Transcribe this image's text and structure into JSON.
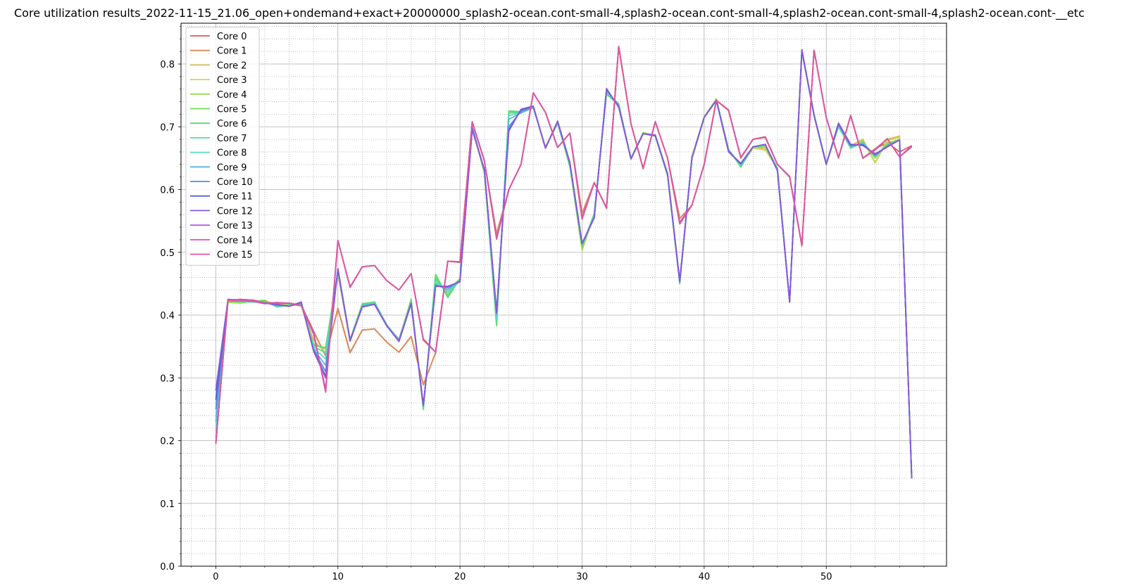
{
  "chart_data": {
    "type": "line",
    "title": "Core utilization results_2022-11-15_21.06_open+ondemand+exact+20000000_splash2-ocean.cont-small-4,splash2-ocean.cont-small-4,splash2-ocean.cont-small-4,splash2-ocean.cont-__etc",
    "xlabel": "",
    "ylabel": "",
    "xlim": [
      -2.85,
      59.85
    ],
    "ylim": [
      0.0,
      0.865
    ],
    "x_ticks": [
      0,
      10,
      20,
      30,
      40,
      50
    ],
    "y_ticks": [
      0.0,
      0.1,
      0.2,
      0.3,
      0.4,
      0.5,
      0.6,
      0.7,
      0.8
    ],
    "x_tick_labels": [
      "0",
      "10",
      "20",
      "30",
      "40",
      "50"
    ],
    "y_tick_labels": [
      "0.0",
      "0.1",
      "0.2",
      "0.3",
      "0.4",
      "0.5",
      "0.6",
      "0.7",
      "0.8"
    ],
    "grid": "major and minor",
    "legend_position": "top-left",
    "x": [
      0,
      1,
      2,
      3,
      4,
      5,
      6,
      7,
      8,
      9,
      10,
      11,
      12,
      13,
      14,
      15,
      16,
      17,
      18,
      19,
      20,
      21,
      22,
      23,
      24,
      25,
      26,
      27,
      28,
      29,
      30,
      31,
      32,
      33,
      34,
      35,
      36,
      37,
      38,
      39,
      40,
      41,
      42,
      43,
      44,
      45,
      46,
      47,
      48,
      49,
      50,
      51,
      52,
      53,
      54,
      55,
      56,
      57
    ],
    "series": [
      {
        "name": "Core 0",
        "color": "#db5f57",
        "values": [
          0.195,
          0.424,
          0.425,
          0.424,
          0.42,
          0.419,
          0.419,
          0.416,
          0.375,
          0.335,
          0.41,
          0.34,
          0.376,
          0.378,
          0.357,
          0.341,
          0.366,
          0.289,
          0.34,
          0.486,
          0.485,
          0.707,
          0.645,
          0.53,
          0.6,
          0.64,
          0.754,
          0.723,
          0.667,
          0.69,
          0.562,
          0.611,
          0.57,
          0.828,
          0.705,
          0.633,
          0.708,
          0.65,
          0.554,
          0.575,
          0.64,
          0.742,
          0.727,
          0.65,
          0.68,
          0.683,
          0.64,
          0.62,
          0.51,
          0.822,
          0.715,
          0.65,
          0.718,
          0.65,
          0.665,
          0.675,
          0.66,
          0.67
        ]
      },
      {
        "name": "Core 1",
        "color": "#db8b57",
        "values": [
          0.195,
          0.423,
          0.424,
          0.424,
          0.421,
          0.418,
          0.418,
          0.416,
          0.374,
          0.335,
          0.411,
          0.341,
          0.376,
          0.378,
          0.357,
          0.341,
          0.366,
          0.289,
          0.34,
          0.486,
          0.485,
          0.707,
          0.645,
          0.53,
          0.6,
          0.64,
          0.754,
          0.723,
          0.667,
          0.69,
          0.562,
          0.611,
          0.57,
          0.828,
          0.705,
          0.633,
          0.708,
          0.65,
          0.554,
          0.575,
          0.64,
          0.742,
          0.727,
          0.65,
          0.68,
          0.683,
          0.64,
          0.62,
          0.51,
          0.822,
          0.715,
          0.65,
          0.718,
          0.65,
          0.665,
          0.68,
          0.685,
          0.14
        ]
      },
      {
        "name": "Core 2",
        "color": "#dbb757",
        "values": [
          0.195,
          0.422,
          0.423,
          0.423,
          0.422,
          0.418,
          0.417,
          0.416,
          0.36,
          0.34,
          0.465,
          0.358,
          0.415,
          0.418,
          0.383,
          0.362,
          0.424,
          0.255,
          0.45,
          0.44,
          0.458,
          0.7,
          0.628,
          0.39,
          0.722,
          0.722,
          0.73,
          0.668,
          0.705,
          0.638,
          0.508,
          0.562,
          0.752,
          0.735,
          0.65,
          0.69,
          0.685,
          0.625,
          0.455,
          0.65,
          0.715,
          0.744,
          0.66,
          0.64,
          0.668,
          0.665,
          0.635,
          0.42,
          0.818,
          0.718,
          0.642,
          0.7,
          0.67,
          0.68,
          0.643,
          0.68,
          0.685,
          0.14
        ]
      },
      {
        "name": "Core 3",
        "color": "#c7db57",
        "values": [
          0.195,
          0.42,
          0.419,
          0.422,
          0.423,
          0.415,
          0.416,
          0.415,
          0.355,
          0.345,
          0.468,
          0.36,
          0.416,
          0.419,
          0.384,
          0.36,
          0.426,
          0.252,
          0.455,
          0.436,
          0.455,
          0.698,
          0.626,
          0.385,
          0.724,
          0.723,
          0.731,
          0.667,
          0.706,
          0.637,
          0.503,
          0.561,
          0.753,
          0.736,
          0.648,
          0.691,
          0.686,
          0.624,
          0.452,
          0.652,
          0.716,
          0.745,
          0.662,
          0.638,
          0.666,
          0.663,
          0.634,
          0.42,
          0.82,
          0.719,
          0.64,
          0.702,
          0.668,
          0.678,
          0.642,
          0.678,
          0.683,
          0.14
        ]
      },
      {
        "name": "Core 4",
        "color": "#9bdb57",
        "values": [
          0.195,
          0.421,
          0.42,
          0.422,
          0.424,
          0.414,
          0.417,
          0.415,
          0.353,
          0.347,
          0.469,
          0.361,
          0.417,
          0.42,
          0.385,
          0.359,
          0.425,
          0.251,
          0.46,
          0.432,
          0.456,
          0.699,
          0.627,
          0.383,
          0.725,
          0.724,
          0.732,
          0.667,
          0.706,
          0.636,
          0.505,
          0.56,
          0.754,
          0.737,
          0.649,
          0.69,
          0.685,
          0.623,
          0.451,
          0.653,
          0.716,
          0.744,
          0.663,
          0.637,
          0.667,
          0.668,
          0.633,
          0.421,
          0.821,
          0.72,
          0.641,
          0.701,
          0.667,
          0.677,
          0.65,
          0.674,
          0.68,
          0.14
        ]
      },
      {
        "name": "Core 5",
        "color": "#6fdb57",
        "values": [
          0.195,
          0.422,
          0.421,
          0.421,
          0.423,
          0.413,
          0.416,
          0.416,
          0.352,
          0.348,
          0.47,
          0.361,
          0.418,
          0.421,
          0.385,
          0.36,
          0.424,
          0.25,
          0.462,
          0.43,
          0.457,
          0.699,
          0.628,
          0.384,
          0.725,
          0.724,
          0.732,
          0.666,
          0.707,
          0.637,
          0.509,
          0.561,
          0.753,
          0.736,
          0.649,
          0.69,
          0.685,
          0.622,
          0.45,
          0.652,
          0.715,
          0.743,
          0.664,
          0.636,
          0.668,
          0.67,
          0.634,
          0.422,
          0.822,
          0.72,
          0.641,
          0.701,
          0.666,
          0.676,
          0.652,
          0.672,
          0.679,
          0.14
        ]
      },
      {
        "name": "Core 6",
        "color": "#57db6f",
        "values": [
          0.195,
          0.423,
          0.422,
          0.421,
          0.422,
          0.413,
          0.416,
          0.417,
          0.352,
          0.348,
          0.47,
          0.361,
          0.417,
          0.421,
          0.384,
          0.36,
          0.423,
          0.25,
          0.465,
          0.428,
          0.458,
          0.7,
          0.629,
          0.385,
          0.725,
          0.724,
          0.732,
          0.666,
          0.707,
          0.638,
          0.51,
          0.562,
          0.752,
          0.735,
          0.65,
          0.69,
          0.685,
          0.622,
          0.45,
          0.651,
          0.715,
          0.743,
          0.664,
          0.636,
          0.668,
          0.671,
          0.634,
          0.422,
          0.822,
          0.72,
          0.641,
          0.7,
          0.666,
          0.675,
          0.653,
          0.671,
          0.679,
          0.14
        ]
      },
      {
        "name": "Core 7",
        "color": "#57db9b",
        "values": [
          0.205,
          0.423,
          0.422,
          0.421,
          0.421,
          0.414,
          0.416,
          0.418,
          0.35,
          0.34,
          0.47,
          0.36,
          0.416,
          0.42,
          0.384,
          0.36,
          0.422,
          0.252,
          0.458,
          0.432,
          0.457,
          0.7,
          0.629,
          0.39,
          0.722,
          0.723,
          0.731,
          0.667,
          0.706,
          0.639,
          0.511,
          0.56,
          0.754,
          0.735,
          0.649,
          0.69,
          0.685,
          0.623,
          0.451,
          0.651,
          0.715,
          0.743,
          0.664,
          0.638,
          0.668,
          0.671,
          0.633,
          0.422,
          0.822,
          0.719,
          0.641,
          0.701,
          0.667,
          0.675,
          0.653,
          0.67,
          0.679,
          0.14
        ]
      },
      {
        "name": "Core 8",
        "color": "#57dbc7",
        "values": [
          0.215,
          0.424,
          0.423,
          0.421,
          0.421,
          0.414,
          0.415,
          0.418,
          0.348,
          0.33,
          0.471,
          0.36,
          0.415,
          0.419,
          0.384,
          0.36,
          0.421,
          0.254,
          0.452,
          0.437,
          0.456,
          0.7,
          0.63,
          0.395,
          0.718,
          0.722,
          0.731,
          0.667,
          0.706,
          0.64,
          0.512,
          0.558,
          0.756,
          0.735,
          0.649,
          0.689,
          0.685,
          0.624,
          0.452,
          0.651,
          0.715,
          0.743,
          0.663,
          0.639,
          0.668,
          0.671,
          0.632,
          0.421,
          0.822,
          0.718,
          0.641,
          0.702,
          0.668,
          0.674,
          0.653,
          0.67,
          0.679,
          0.14
        ]
      },
      {
        "name": "Core 9",
        "color": "#57b7db",
        "values": [
          0.23,
          0.424,
          0.423,
          0.422,
          0.42,
          0.415,
          0.415,
          0.419,
          0.346,
          0.32,
          0.472,
          0.36,
          0.414,
          0.418,
          0.383,
          0.36,
          0.42,
          0.255,
          0.449,
          0.441,
          0.455,
          0.699,
          0.63,
          0.4,
          0.712,
          0.722,
          0.731,
          0.667,
          0.707,
          0.641,
          0.513,
          0.557,
          0.758,
          0.734,
          0.649,
          0.689,
          0.686,
          0.624,
          0.452,
          0.65,
          0.715,
          0.743,
          0.662,
          0.64,
          0.668,
          0.672,
          0.631,
          0.421,
          0.822,
          0.718,
          0.64,
          0.703,
          0.669,
          0.673,
          0.654,
          0.669,
          0.679,
          0.14
        ]
      },
      {
        "name": "Core 10",
        "color": "#578bdb",
        "values": [
          0.25,
          0.425,
          0.424,
          0.423,
          0.42,
          0.416,
          0.414,
          0.42,
          0.345,
          0.31,
          0.473,
          0.359,
          0.414,
          0.417,
          0.383,
          0.359,
          0.419,
          0.256,
          0.447,
          0.444,
          0.454,
          0.697,
          0.631,
          0.403,
          0.7,
          0.725,
          0.732,
          0.666,
          0.708,
          0.642,
          0.514,
          0.556,
          0.759,
          0.733,
          0.649,
          0.689,
          0.686,
          0.625,
          0.453,
          0.65,
          0.715,
          0.742,
          0.661,
          0.641,
          0.668,
          0.672,
          0.63,
          0.421,
          0.822,
          0.718,
          0.64,
          0.704,
          0.67,
          0.672,
          0.655,
          0.669,
          0.679,
          0.14
        ]
      },
      {
        "name": "Core 11",
        "color": "#575fdb",
        "values": [
          0.265,
          0.425,
          0.424,
          0.423,
          0.419,
          0.417,
          0.414,
          0.42,
          0.344,
          0.303,
          0.474,
          0.359,
          0.413,
          0.417,
          0.383,
          0.358,
          0.418,
          0.256,
          0.446,
          0.445,
          0.453,
          0.696,
          0.631,
          0.405,
          0.695,
          0.727,
          0.733,
          0.666,
          0.709,
          0.643,
          0.514,
          0.555,
          0.76,
          0.732,
          0.649,
          0.689,
          0.686,
          0.625,
          0.454,
          0.65,
          0.715,
          0.742,
          0.661,
          0.641,
          0.668,
          0.672,
          0.63,
          0.421,
          0.822,
          0.718,
          0.64,
          0.705,
          0.671,
          0.671,
          0.656,
          0.668,
          0.679,
          0.14
        ]
      },
      {
        "name": "Core 12",
        "color": "#8b57db",
        "values": [
          0.28,
          0.425,
          0.424,
          0.424,
          0.419,
          0.417,
          0.414,
          0.421,
          0.343,
          0.3,
          0.474,
          0.359,
          0.413,
          0.417,
          0.383,
          0.358,
          0.418,
          0.256,
          0.446,
          0.446,
          0.453,
          0.695,
          0.632,
          0.406,
          0.693,
          0.728,
          0.733,
          0.666,
          0.709,
          0.643,
          0.514,
          0.555,
          0.761,
          0.731,
          0.649,
          0.689,
          0.687,
          0.625,
          0.454,
          0.65,
          0.715,
          0.742,
          0.66,
          0.642,
          0.668,
          0.672,
          0.63,
          0.421,
          0.823,
          0.718,
          0.64,
          0.706,
          0.672,
          0.67,
          0.657,
          0.668,
          0.679,
          0.14
        ]
      },
      {
        "name": "Core 13",
        "color": "#b757db",
        "values": [
          0.195,
          0.423,
          0.423,
          0.422,
          0.418,
          0.419,
          0.419,
          0.415,
          0.37,
          0.282,
          0.519,
          0.444,
          0.477,
          0.479,
          0.455,
          0.44,
          0.466,
          0.36,
          0.341,
          0.486,
          0.484,
          0.708,
          0.646,
          0.523,
          0.6,
          0.64,
          0.754,
          0.723,
          0.667,
          0.69,
          0.555,
          0.611,
          0.571,
          0.828,
          0.705,
          0.634,
          0.708,
          0.65,
          0.548,
          0.575,
          0.64,
          0.742,
          0.726,
          0.651,
          0.68,
          0.684,
          0.64,
          0.621,
          0.511,
          0.822,
          0.715,
          0.651,
          0.718,
          0.65,
          0.664,
          0.681,
          0.652,
          0.668
        ]
      },
      {
        "name": "Core 14",
        "color": "#db57c7",
        "values": [
          0.195,
          0.423,
          0.424,
          0.423,
          0.419,
          0.42,
          0.419,
          0.415,
          0.372,
          0.279,
          0.519,
          0.444,
          0.477,
          0.479,
          0.455,
          0.44,
          0.466,
          0.361,
          0.341,
          0.486,
          0.484,
          0.708,
          0.646,
          0.522,
          0.6,
          0.64,
          0.754,
          0.723,
          0.667,
          0.69,
          0.554,
          0.611,
          0.571,
          0.828,
          0.705,
          0.634,
          0.708,
          0.65,
          0.546,
          0.575,
          0.64,
          0.742,
          0.726,
          0.651,
          0.68,
          0.684,
          0.64,
          0.621,
          0.511,
          0.822,
          0.715,
          0.651,
          0.718,
          0.65,
          0.663,
          0.681,
          0.652,
          0.669
        ]
      },
      {
        "name": "Core 15",
        "color": "#db579b",
        "values": [
          0.195,
          0.424,
          0.425,
          0.424,
          0.419,
          0.42,
          0.419,
          0.415,
          0.374,
          0.277,
          0.519,
          0.445,
          0.477,
          0.479,
          0.455,
          0.44,
          0.466,
          0.362,
          0.341,
          0.486,
          0.484,
          0.708,
          0.646,
          0.521,
          0.6,
          0.64,
          0.754,
          0.723,
          0.667,
          0.69,
          0.553,
          0.611,
          0.571,
          0.828,
          0.705,
          0.634,
          0.708,
          0.65,
          0.545,
          0.575,
          0.64,
          0.742,
          0.726,
          0.651,
          0.68,
          0.684,
          0.64,
          0.621,
          0.511,
          0.822,
          0.715,
          0.651,
          0.718,
          0.65,
          0.663,
          0.681,
          0.652,
          0.67
        ]
      }
    ]
  }
}
